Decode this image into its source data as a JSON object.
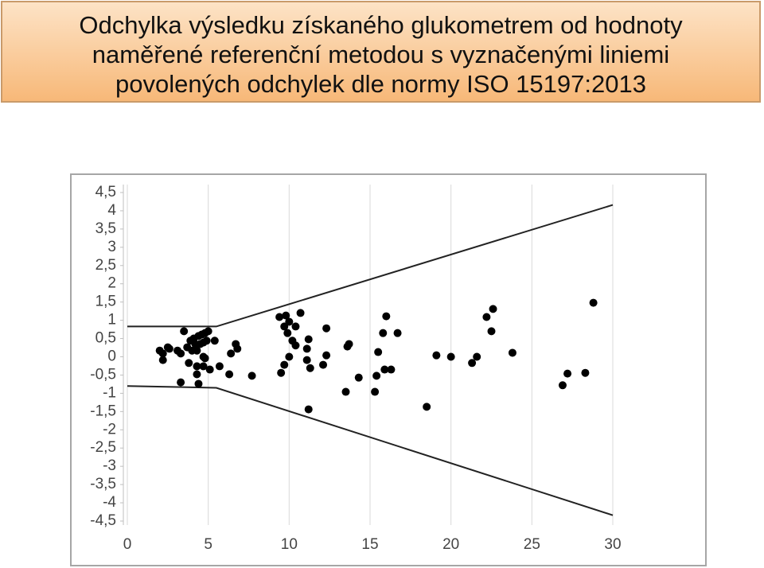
{
  "header": {
    "title_lines": [
      "Odchylka výsledku získaného glukometrem od hodnoty",
      "naměřené referenční metodou s vyznačenými liniemi",
      "povolených odchylek dle normy ISO 15197:2013"
    ]
  },
  "chart_data": {
    "type": "scatter",
    "color": "#000000",
    "line_color": "#222222",
    "grid": true,
    "xlim": [
      0,
      30
    ],
    "ylim": [
      -4.5,
      4.5
    ],
    "xticks": [
      0,
      5,
      10,
      15,
      20,
      25,
      30
    ],
    "yticks": [
      {
        "value": 4.5,
        "label": "4,5"
      },
      4,
      {
        "value": 3.5,
        "label": "3,5"
      },
      3,
      {
        "value": 2.5,
        "label": "2,5"
      },
      2,
      {
        "value": 1.5,
        "label": "1,5"
      },
      1,
      {
        "value": 0.5,
        "label": "0,5"
      },
      0,
      {
        "value": -0.5,
        "label": "-0,5"
      },
      -1,
      {
        "value": -1.5,
        "label": "-1,5"
      },
      -2,
      {
        "value": -2.5,
        "label": "-2,5"
      },
      -3,
      {
        "value": -3.5,
        "label": "-3,5"
      },
      -4,
      {
        "value": -4.5,
        "label": "-4,5"
      }
    ],
    "points": {
      "x": [
        2.0,
        2.2,
        2.5,
        2.6,
        3.1,
        3.3,
        3.5,
        3.7,
        3.9,
        4.0,
        4.1,
        4.2,
        4.3,
        4.4,
        4.5,
        4.6,
        4.7,
        4.8,
        4.9,
        5.0,
        4.3,
        4.3,
        4.4,
        3.3,
        3.8,
        4.7,
        4.8,
        5.1,
        5.4,
        5.7,
        6.3,
        6.4,
        6.7,
        6.8,
        7.7,
        9.4,
        9.8,
        9.7,
        9.9,
        10.0,
        10.4,
        10.2,
        10.4,
        10.7,
        11.2,
        11.1,
        11.3,
        11.2,
        9.5,
        9.7,
        10.0,
        11.1,
        12.1,
        12.3,
        12.3,
        13.5,
        13.6,
        13.7,
        14.3,
        15.4,
        15.3,
        15.5,
        15.8,
        16.0,
        15.9,
        16.3,
        16.7,
        18.5,
        19.1,
        20.0,
        21.3,
        21.6,
        22.2,
        22.5,
        22.6,
        23.8,
        26.9,
        27.2,
        28.3,
        28.8,
        2.2,
        4.7
      ],
      "y": [
        0.17,
        -0.09,
        0.26,
        0.22,
        0.17,
        0.09,
        0.7,
        0.26,
        0.44,
        0.17,
        0.5,
        0.35,
        0.17,
        0.57,
        0.35,
        0.61,
        0.39,
        0.65,
        0.44,
        0.7,
        -0.26,
        -0.48,
        -0.74,
        -0.7,
        -0.17,
        0,
        -0.04,
        -0.35,
        0.44,
        -0.26,
        -0.48,
        0.09,
        0.35,
        0.22,
        -0.52,
        1.09,
        1.13,
        0.83,
        0.65,
        0.96,
        0.83,
        0.44,
        0.31,
        1.2,
        0.48,
        0.22,
        -0.31,
        -1.44,
        -0.44,
        -0.22,
        0,
        -0.09,
        -0.22,
        0.78,
        0.04,
        -0.96,
        0.28,
        0.35,
        -0.57,
        -0.52,
        -0.96,
        0.13,
        0.65,
        1.11,
        -0.35,
        -0.35,
        0.65,
        -1.37,
        0.04,
        0,
        -0.17,
        0,
        1.09,
        0.7,
        1.31,
        0.11,
        -0.78,
        -0.46,
        -0.44,
        1.48,
        0.09,
        -0.26
      ]
    },
    "limit_lines": [
      {
        "x": [
          0,
          5.5,
          30
        ],
        "y": [
          0.83,
          0.83,
          4.16
        ]
      },
      {
        "x": [
          0,
          5.5,
          30
        ],
        "y": [
          -0.8,
          -0.85,
          -4.34
        ]
      }
    ]
  }
}
